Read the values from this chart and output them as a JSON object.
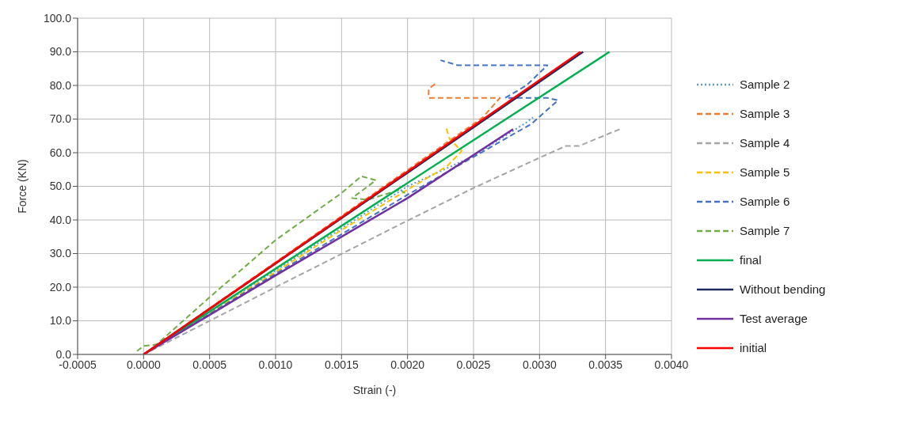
{
  "chart_data": {
    "type": "line",
    "xlabel": "Strain (-)",
    "ylabel": "Force (KN)",
    "xlim": [
      -0.0005,
      0.004
    ],
    "ylim": [
      0,
      100
    ],
    "xticks": [
      {
        "value": -0.0005,
        "label": "-0.0005"
      },
      {
        "value": 0,
        "label": "0.0000"
      },
      {
        "value": 0.0005,
        "label": "0.0005"
      },
      {
        "value": 0.001,
        "label": "0.0010"
      },
      {
        "value": 0.0015,
        "label": "0.0015"
      },
      {
        "value": 0.002,
        "label": "0.0020"
      },
      {
        "value": 0.0025,
        "label": "0.0025"
      },
      {
        "value": 0.003,
        "label": "0.0030"
      },
      {
        "value": 0.0035,
        "label": "0.0035"
      },
      {
        "value": 0.004,
        "label": "0.0040"
      }
    ],
    "yticks": [
      {
        "value": 0,
        "label": "0.0"
      },
      {
        "value": 10,
        "label": "10.0"
      },
      {
        "value": 20,
        "label": "20.0"
      },
      {
        "value": 30,
        "label": "30.0"
      },
      {
        "value": 40,
        "label": "40.0"
      },
      {
        "value": 50,
        "label": "50.0"
      },
      {
        "value": 60,
        "label": "60.0"
      },
      {
        "value": 70,
        "label": "70.0"
      },
      {
        "value": 80,
        "label": "80.0"
      },
      {
        "value": 90,
        "label": "90.0"
      },
      {
        "value": 100,
        "label": "100.0"
      }
    ],
    "grid": true,
    "legend": "right",
    "marker": "none",
    "series": [
      {
        "name": "Sample 2",
        "color": "#5b9bd5",
        "line_style": "dotted",
        "x": [
          0,
          0.001,
          0.002,
          0.0025,
          0.0029,
          0.00295
        ],
        "values": [
          0,
          25,
          50,
          59,
          69,
          70.5
        ]
      },
      {
        "name": "Sample 3",
        "color": "#ed7d31",
        "line_style": "dashed",
        "x": [
          0,
          0.00257,
          0.0027,
          0.00216,
          0.00216,
          0.00221
        ],
        "values": [
          0,
          70.5,
          76.3,
          76.3,
          79,
          80.5
        ]
      },
      {
        "name": "Sample 4",
        "color": "#a5a5a5",
        "line_style": "dashed",
        "x": [
          0,
          0.0005,
          0.001,
          0.002,
          0.0025,
          0.003,
          0.0032,
          0.0033,
          0.00362
        ],
        "values": [
          0,
          10,
          20,
          39.8,
          49.5,
          58.5,
          62,
          62,
          67.2
        ]
      },
      {
        "name": "Sample 5",
        "color": "#ffc000",
        "line_style": "dashed",
        "x": [
          0,
          0.001,
          0.0015,
          0.002,
          0.0023,
          0.00241,
          0.00232,
          0.00229
        ],
        "values": [
          0,
          24.5,
          37,
          49,
          56,
          60.5,
          64,
          67.7
        ]
      },
      {
        "name": "Sample 6",
        "color": "#4472c4",
        "line_style": "dashed",
        "x": [
          0,
          0.001,
          0.002,
          0.00269,
          0.00294,
          0.00314,
          0.00306,
          0.00274,
          0.0029,
          0.00306,
          0.00238,
          0.00225
        ],
        "values": [
          0,
          24,
          47.5,
          63,
          68.6,
          75.6,
          76.3,
          76.3,
          80,
          86,
          86,
          87.5
        ]
      },
      {
        "name": "Sample 7",
        "color": "#70ad47",
        "line_style": "dashed",
        "x": [
          -5e-05,
          0,
          0.0001,
          0.0005,
          0.001,
          0.0015,
          0.00165,
          0.00176,
          0.00158,
          0.0017,
          0.00194,
          0.00198
        ],
        "values": [
          1,
          2.5,
          3,
          17,
          34,
          48,
          53,
          51.8,
          46.5,
          46,
          49,
          48
        ]
      },
      {
        "name": "final",
        "color": "#00b050",
        "line_style": "solid",
        "x": [
          0,
          0.00353
        ],
        "values": [
          0,
          90
        ]
      },
      {
        "name": "Without bending",
        "color": "#1f2a5c",
        "line_style": "solid",
        "x": [
          0,
          0.00333
        ],
        "values": [
          0,
          90
        ]
      },
      {
        "name": "Test average",
        "color": "#7030a0",
        "line_style": "solid",
        "x": [
          0,
          0.001,
          0.002,
          0.0028
        ],
        "values": [
          0,
          23.5,
          46.5,
          67
        ]
      },
      {
        "name": "initial",
        "color": "#ff0000",
        "line_style": "solid",
        "x": [
          0,
          0.00331
        ],
        "values": [
          0,
          90
        ]
      }
    ]
  }
}
